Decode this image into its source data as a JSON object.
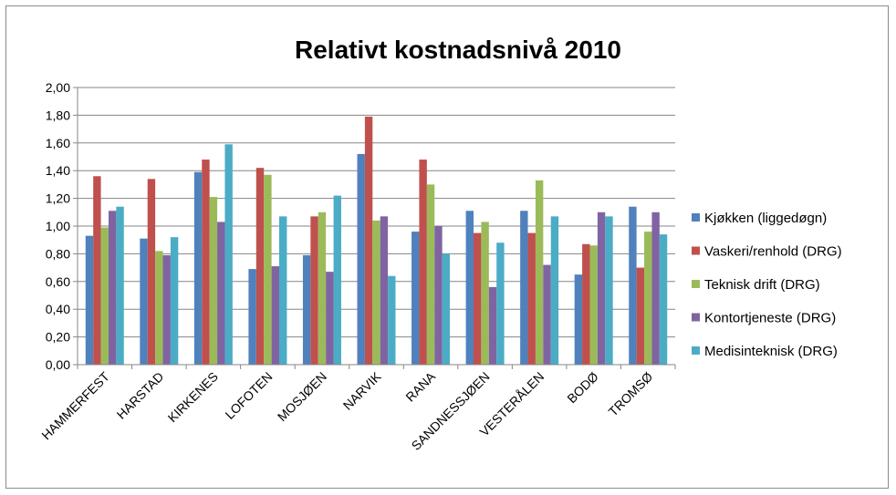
{
  "chart_data": {
    "type": "bar",
    "title": "Relativt kostnadsnivå 2010",
    "xlabel": "",
    "ylabel": "",
    "ylim": [
      0,
      2.0
    ],
    "ytick_step": 0.2,
    "grid": true,
    "legend_position": "right",
    "categories": [
      "HAMMERFEST",
      "HARSTAD",
      "KIRKENES",
      "LOFOTEN",
      "MOSJØEN",
      "NARVIK",
      "RANA",
      "SANDNESSJØEN",
      "VESTERÅLEN",
      "BODØ",
      "TROMSØ"
    ],
    "series": [
      {
        "name": "Kjøkken (liggedøgn)",
        "color": "#4f81bd",
        "values": [
          0.93,
          0.91,
          1.39,
          0.69,
          0.79,
          1.52,
          0.96,
          1.11,
          1.11,
          0.65,
          1.14
        ]
      },
      {
        "name": "Vaskeri/renhold (DRG)",
        "color": "#c0504d",
        "values": [
          1.36,
          1.34,
          1.48,
          1.42,
          1.07,
          1.79,
          1.48,
          0.95,
          0.95,
          0.87,
          0.7
        ]
      },
      {
        "name": "Teknisk drift (DRG)",
        "color": "#9bbb59",
        "values": [
          0.99,
          0.82,
          1.21,
          1.37,
          1.1,
          1.04,
          1.3,
          1.03,
          1.33,
          0.86,
          0.96
        ]
      },
      {
        "name": "Kontortjeneste (DRG)",
        "color": "#8064a2",
        "values": [
          1.11,
          0.79,
          1.03,
          0.71,
          0.67,
          1.07,
          1.0,
          0.56,
          0.72,
          1.1,
          1.1
        ]
      },
      {
        "name": "Medisinteknisk (DRG)",
        "color": "#4bacc6",
        "values": [
          1.14,
          0.92,
          1.59,
          1.07,
          1.22,
          0.64,
          0.8,
          0.88,
          1.07,
          1.07,
          0.94
        ]
      }
    ]
  }
}
